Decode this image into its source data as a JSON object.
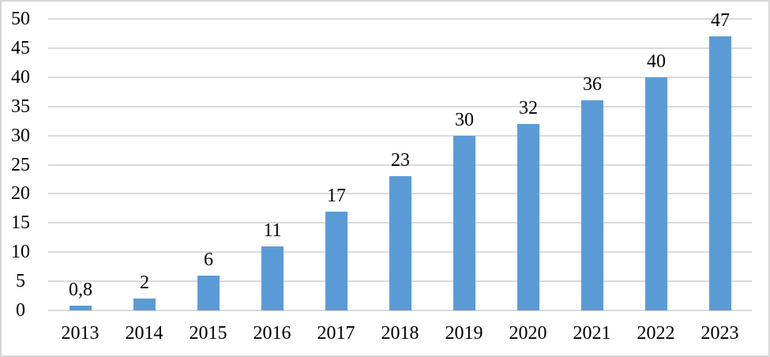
{
  "figure": {
    "background": "#ffffff",
    "border_color": "#d6d6d6"
  },
  "chart_data": {
    "type": "bar",
    "title": "",
    "xlabel": "",
    "ylabel": "",
    "categories": [
      "2013",
      "2014",
      "2015",
      "2016",
      "2017",
      "2018",
      "2019",
      "2020",
      "2021",
      "2022",
      "2023"
    ],
    "values": [
      0.8,
      2,
      6,
      11,
      17,
      23,
      30,
      32,
      36,
      40,
      47
    ],
    "value_labels": [
      "0,8",
      "2",
      "6",
      "11",
      "17",
      "23",
      "30",
      "32",
      "36",
      "40",
      "47"
    ],
    "ylim": [
      0,
      50
    ],
    "yticks": [
      0,
      5,
      10,
      15,
      20,
      25,
      30,
      35,
      40,
      45,
      50
    ],
    "grid": true,
    "legend_position": "none",
    "bar_color": "#5b9bd5",
    "gridline_color": "#dadada",
    "axis_text_color": "#000000",
    "decimal_separator": "comma"
  }
}
